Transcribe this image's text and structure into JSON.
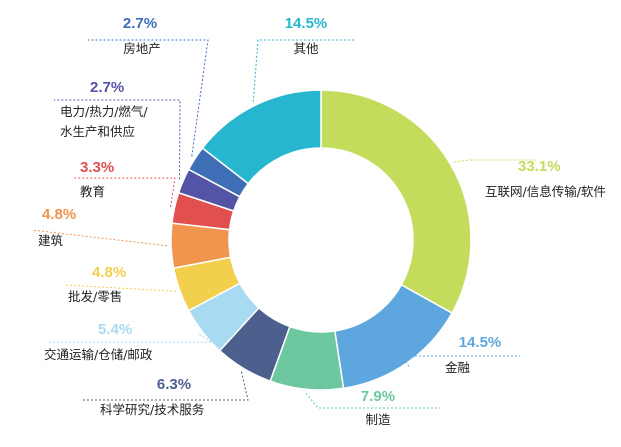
{
  "chart_data": {
    "type": "pie",
    "style": "donut",
    "start": "12 o'clock",
    "direction": "clockwise",
    "slices": [
      {
        "label": "互联网/信息传输/软件",
        "value_label": "33.1%",
        "value": 33.1,
        "color": "#C4DC5B"
      },
      {
        "label": "金融",
        "value_label": "14.5%",
        "value": 14.5,
        "color": "#5DA6DE"
      },
      {
        "label": "制造",
        "value_label": "7.9%",
        "value": 7.9,
        "color": "#6DC8A0"
      },
      {
        "label": "科学研究/技术服务",
        "value_label": "6.3%",
        "value": 6.3,
        "color": "#4C5F8D"
      },
      {
        "label": "交通运输/仓储/邮政",
        "value_label": "5.4%",
        "value": 5.4,
        "color": "#A8DAF2"
      },
      {
        "label": "批发/零售",
        "value_label": "4.8%",
        "value": 4.8,
        "color": "#F2CF4C"
      },
      {
        "label": "建筑",
        "value_label": "4.8%",
        "value": 4.8,
        "color": "#F0944E"
      },
      {
        "label": "教育",
        "value_label": "3.3%",
        "value": 3.3,
        "color": "#E14F4F"
      },
      {
        "label": "电力/热力/燃气/水生产和供应",
        "label_lines": [
          "电力/热力/燃气/",
          "水生产和供应"
        ],
        "value_label": "2.7%",
        "value": 2.7,
        "color": "#5454A6"
      },
      {
        "label": "房地产",
        "value_label": "2.7%",
        "value": 2.7,
        "color": "#3E6FB6"
      },
      {
        "label": "其他",
        "value_label": "14.5%",
        "value": 14.5,
        "color": "#27B6CF"
      }
    ]
  }
}
